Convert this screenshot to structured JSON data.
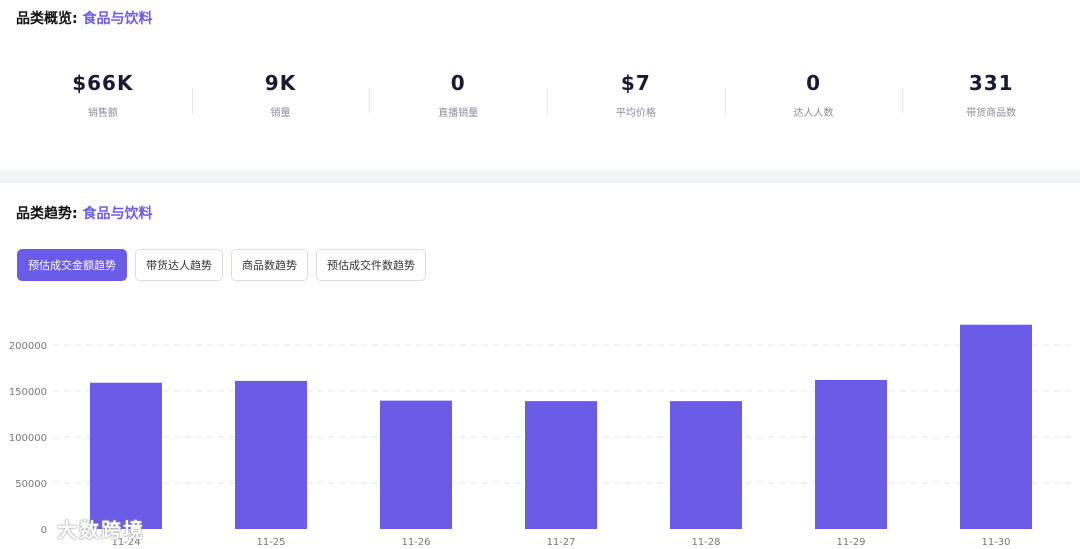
{
  "overview": {
    "title_prefix": "品类概览:",
    "category": "食品与饮料",
    "metrics": [
      {
        "value": "$66K",
        "label": "销售额"
      },
      {
        "value": "9K",
        "label": "销量"
      },
      {
        "value": "0",
        "label": "直播销量"
      },
      {
        "value": "$7",
        "label": "平均价格"
      },
      {
        "value": "0",
        "label": "达人人数"
      },
      {
        "value": "331",
        "label": "带货商品数"
      }
    ]
  },
  "trend": {
    "title_prefix": "品类趋势:",
    "category": "食品与饮料",
    "tabs": [
      {
        "label": "预估成交金额趋势",
        "active": true
      },
      {
        "label": "带货达人趋势",
        "active": false
      },
      {
        "label": "商品数趋势",
        "active": false
      },
      {
        "label": "预估成交件数趋势",
        "active": false
      }
    ]
  },
  "chart_data": {
    "type": "bar",
    "categories": [
      "11-24",
      "11-25",
      "11-26",
      "11-27",
      "11-28",
      "11-29",
      "11-30"
    ],
    "values": [
      159000,
      161000,
      139500,
      139000,
      139000,
      162000,
      222000
    ],
    "y_ticks": [
      0,
      50000,
      100000,
      150000,
      200000
    ],
    "ylim": [
      0,
      240000
    ],
    "grid": true,
    "bar_color": "#6b5ce7"
  },
  "watermark": "大数跨境"
}
